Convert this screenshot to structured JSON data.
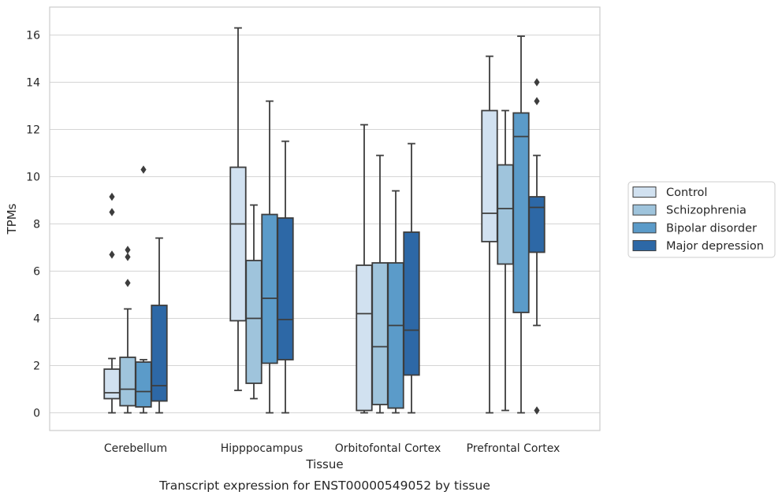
{
  "chart_data": {
    "type": "box",
    "title": "Transcript expression for ENST00000549052 by tissue",
    "xlabel": "Tissue",
    "ylabel": "TPMs",
    "ylim": [
      -0.8,
      17.2
    ],
    "yticks": [
      0,
      2,
      4,
      6,
      8,
      10,
      12,
      14,
      16
    ],
    "grid": "horizontal",
    "legend": "right",
    "categories": [
      "Cerebellum",
      "Hipppocampus",
      "Orbitofontal Cortex",
      "Prefrontal Cortex"
    ],
    "series": [
      {
        "name": "Control",
        "color": "#d1e1f0",
        "boxes": [
          {
            "whislo": 0.0,
            "q1": 0.6,
            "med": 0.85,
            "q3": 1.85,
            "whishi": 2.3,
            "fliers": []
          },
          {
            "whislo": 0.95,
            "q1": 3.9,
            "med": 8.0,
            "q3": 10.4,
            "whishi": 16.3,
            "fliers": []
          },
          {
            "whislo": 0.0,
            "q1": 0.1,
            "med": 4.2,
            "q3": 6.25,
            "whishi": 12.2,
            "fliers": []
          },
          {
            "whislo": 0.0,
            "q1": 7.25,
            "med": 8.45,
            "q3": 12.8,
            "whishi": 15.1,
            "fliers": []
          }
        ]
      },
      {
        "name": "Schizophrenia",
        "color": "#9fc4dc",
        "boxes": [
          {
            "whislo": 0.0,
            "q1": 0.3,
            "med": 1.0,
            "q3": 2.35,
            "whishi": 4.4,
            "fliers": [
              6.6,
              6.9,
              5.5
            ]
          },
          {
            "whislo": 0.6,
            "q1": 1.25,
            "med": 4.0,
            "q3": 6.45,
            "whishi": 8.8,
            "fliers": []
          },
          {
            "whislo": 0.0,
            "q1": 0.35,
            "med": 2.8,
            "q3": 6.35,
            "whishi": 10.9,
            "fliers": []
          },
          {
            "whislo": 0.1,
            "q1": 6.3,
            "med": 8.65,
            "q3": 10.5,
            "whishi": 12.8,
            "fliers": []
          }
        ]
      },
      {
        "name": "Bipolar disorder",
        "color": "#5b9bc9",
        "boxes": [
          {
            "whislo": 0.0,
            "q1": 0.25,
            "med": 0.9,
            "q3": 2.15,
            "whishi": 2.25,
            "fliers": [
              10.3
            ]
          },
          {
            "whislo": 0.0,
            "q1": 2.1,
            "med": 4.85,
            "q3": 8.4,
            "whishi": 13.2,
            "fliers": []
          },
          {
            "whislo": 0.0,
            "q1": 0.2,
            "med": 3.7,
            "q3": 6.35,
            "whishi": 9.4,
            "fliers": []
          },
          {
            "whislo": 0.0,
            "q1": 4.25,
            "med": 11.7,
            "q3": 12.7,
            "whishi": 15.95,
            "fliers": []
          }
        ]
      },
      {
        "name": "Major depression",
        "color": "#2d68a6",
        "boxes": [
          {
            "whislo": 0.0,
            "q1": 0.5,
            "med": 1.15,
            "q3": 4.55,
            "whishi": 7.4,
            "fliers": []
          },
          {
            "whislo": 0.0,
            "q1": 2.25,
            "med": 3.95,
            "q3": 8.25,
            "whishi": 11.5,
            "fliers": []
          },
          {
            "whislo": 0.0,
            "q1": 1.6,
            "med": 3.5,
            "q3": 7.65,
            "whishi": 11.4,
            "fliers": []
          },
          {
            "whislo": 3.7,
            "q1": 6.8,
            "med": 8.7,
            "q3": 9.15,
            "whishi": 10.9,
            "fliers": [
              14.0,
              13.2,
              0.1
            ]
          }
        ]
      }
    ],
    "extra_fliers": [
      {
        "series": 0,
        "category": 0,
        "values": [
          9.15,
          8.5,
          6.7
        ]
      }
    ]
  }
}
